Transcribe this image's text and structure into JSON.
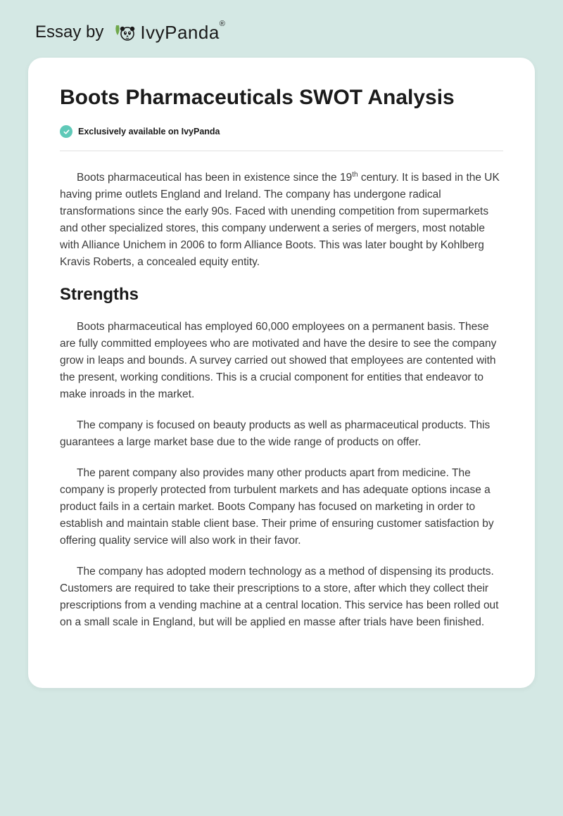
{
  "header": {
    "essay_by": "Essay by",
    "brand": "IvyPanda",
    "brand_reg": "®"
  },
  "card": {
    "title": "Boots Pharmaceuticals SWOT Analysis",
    "badge": "Exclusively available on IvyPanda",
    "intro_html": "Boots pharmaceutical has been in existence since the 19<sup>th</sup> century. It is based in the UK having prime outlets England and Ireland. The company has undergone radical transformations since the early 90s. Faced with unending competition from supermarkets and other specialized stores, this company underwent a series of mergers, most notable with Alliance Unichem in 2006 to form Alliance Boots. This was later bought by Kohlberg Kravis Roberts, a concealed equity entity.",
    "section1_heading": "Strengths",
    "para1": "Boots pharmaceutical has employed 60,000 employees on a permanent basis. These are fully committed employees who are motivated and have the desire to see the company grow in leaps and bounds. A survey carried out showed that employees are contented with the present, working conditions. This is a crucial component for entities that endeavor to make inroads in the market.",
    "para2": "The company is focused on beauty products as well as pharmaceutical products. This guarantees a large market base due to the wide range of products on offer.",
    "para3": "The parent company also provides many other products apart from medicine. The company is properly protected from turbulent markets and has adequate options incase a product fails in a certain market. Boots Company has focused on marketing in order to establish and maintain stable client base. Their prime of ensuring customer satisfaction by offering quality service will also work in their favor.",
    "para4": "The company has adopted modern technology as a method of dispensing its products. Customers are required to take their prescriptions to a store, after which they collect their prescriptions from a vending machine at a central location. This service has been rolled out on a small scale in England, but will be applied en masse after trials have been finished."
  },
  "colors": {
    "page_bg": "#d4e8e4",
    "card_bg": "#ffffff",
    "accent": "#5fc9b8",
    "leaf": "#6fa84a",
    "text": "#1a1a1a",
    "body_text": "#3a3a3a",
    "divider": "#e2e2e2"
  },
  "typography": {
    "title_size_pt": 30,
    "heading_size_pt": 24,
    "body_size_pt": 15.5,
    "badge_size_pt": 12.5
  }
}
